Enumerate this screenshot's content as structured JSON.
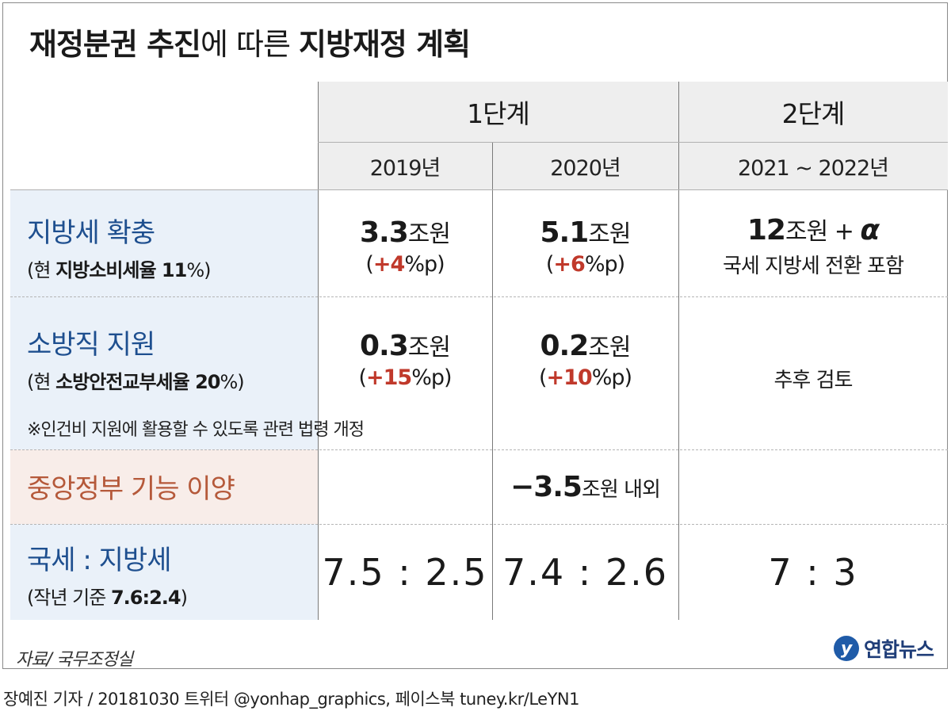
{
  "title": {
    "bold1": "재정분권 추진",
    "thin": "에 따른 ",
    "bold2": "지방재정 계획"
  },
  "stages": {
    "stage1": "1단계",
    "stage2": "2단계"
  },
  "years": {
    "y2019": "2019년",
    "y2020": "2020년",
    "y2122": "2021 ~ 2022년"
  },
  "rows": {
    "local_tax": {
      "label": "지방세 확충",
      "sub_prefix": "(현 ",
      "sub_bold": "지방소비세율 11",
      "sub_suffix": "%)",
      "y2019": {
        "num": "3.3",
        "unit": "조원",
        "p_open": "(",
        "p_val": "+4",
        "p_close": "%p)"
      },
      "y2020": {
        "num": "5.1",
        "unit": "조원",
        "p_open": "(",
        "p_val": "+6",
        "p_close": "%p)"
      },
      "y2122": {
        "num": "12",
        "unit": "조원 + ",
        "alpha": "α",
        "desc": "국세 지방세 전환 포함"
      }
    },
    "fire": {
      "label": "소방직 지원",
      "sub_prefix": "(현 ",
      "sub_bold": "소방안전교부세율 20",
      "sub_suffix": "%)",
      "note": "※인건비 지원에 활용할 수 있도록 관련 법령 개정",
      "y2019": {
        "num": "0.3",
        "unit": "조원",
        "p_open": "(",
        "p_val": "+15",
        "p_close": "%p)"
      },
      "y2020": {
        "num": "0.2",
        "unit": "조원",
        "p_open": "(",
        "p_val": "+10",
        "p_close": "%p)"
      },
      "y2122": "추후 검토"
    },
    "transfer": {
      "label": "중앙정부 기능 이양",
      "y2020": {
        "num": "−3.5",
        "unit": "조원 내외"
      }
    },
    "ratio": {
      "label": "국세 : 지방세",
      "sub_prefix": "(작년 기준 ",
      "sub_bold": "7.6:2.4",
      "sub_suffix": ")",
      "y2019": "7.5 : 2.5",
      "y2020": "7.4 : 2.6",
      "y2122": "7 : 3"
    }
  },
  "source": "자료/ 국무조정실",
  "logo": {
    "mark": "y",
    "text": "연합뉴스"
  },
  "credit": "장예진 기자 / 20181030 트위터 @yonhap_graphics, 페이스북 tuney.kr/LeYN1",
  "colors": {
    "label_blue": "#1e4f8f",
    "label_orange": "#b5593a",
    "accent_red": "#c0392b",
    "side_blue": "#eaf1f9",
    "side_pink": "#f8ede9",
    "header_gray": "#eeeeee"
  }
}
